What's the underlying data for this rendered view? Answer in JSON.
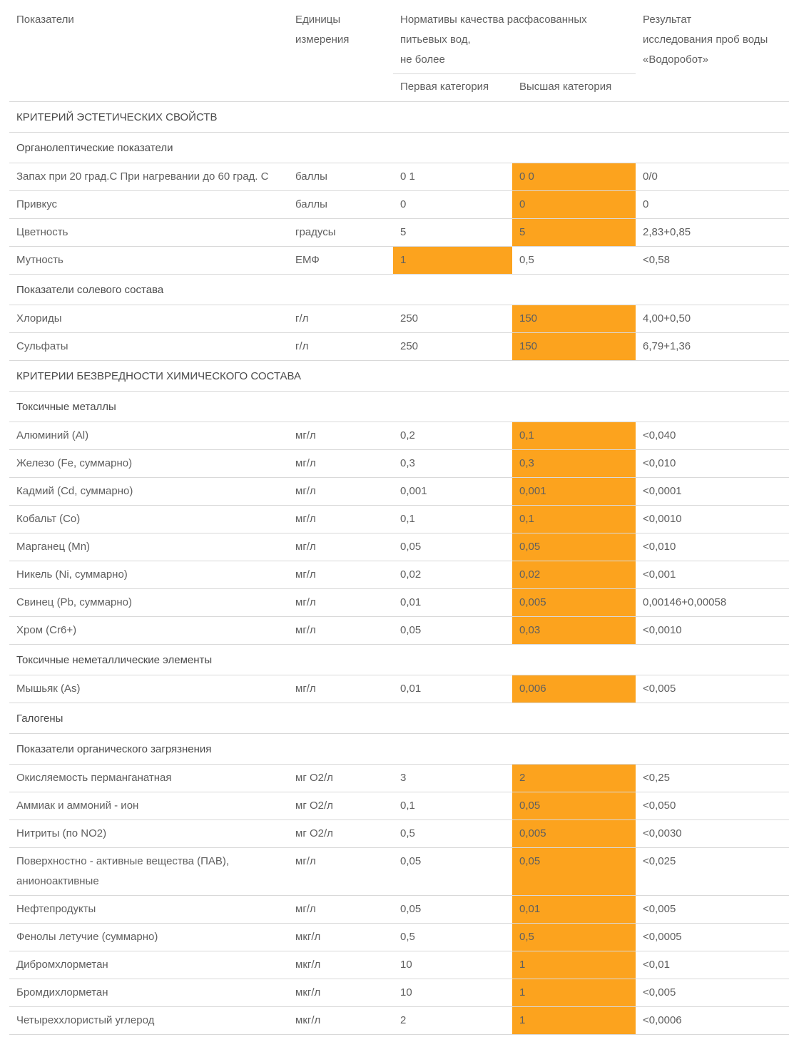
{
  "header": {
    "col_name": "Показатели",
    "col_unit_1": "Единицы",
    "col_unit_2": "измерения",
    "col_norm_1": "Нормативы качества расфасованных",
    "col_norm_2": "питьевых вод,",
    "col_norm_3": "не более",
    "col_res_1": "Результат",
    "col_res_2": "исследования проб воды",
    "col_res_3": "«Водоробот»",
    "sub_first": "Первая категория",
    "sub_high": "Высшая категория"
  },
  "rows": [
    {
      "type": "section",
      "text": "КРИТЕРИЙ ЭСТЕТИЧЕСКИХ СВОЙСТВ"
    },
    {
      "type": "subsection",
      "text": "Органолептические показатели"
    },
    {
      "type": "data",
      "name": "Запах при 20 град.С При нагревании до 60 град. С",
      "unit": "баллы",
      "first": "0 1",
      "high": "0 0",
      "result": "0/0",
      "hl": "high"
    },
    {
      "type": "data",
      "name": "Привкус",
      "unit": "баллы",
      "first": "0",
      "high": "0",
      "result": "0",
      "hl": "high"
    },
    {
      "type": "data",
      "name": "Цветность",
      "unit": "градусы",
      "first": "5",
      "high": "5",
      "result": "2,83+0,85",
      "hl": "high"
    },
    {
      "type": "data",
      "name": "Мутность",
      "unit": "ЕМФ",
      "first": "1",
      "high": "0,5",
      "result": "<0,58",
      "hl": "first"
    },
    {
      "type": "subsection",
      "text": "Показатели солевого состава"
    },
    {
      "type": "data",
      "name": "Хлориды",
      "unit": "г/л",
      "first": "250",
      "high": "150",
      "result": "4,00+0,50",
      "hl": "high"
    },
    {
      "type": "data",
      "name": "Сульфаты",
      "unit": "г/л",
      "first": "250",
      "high": "150",
      "result": "6,79+1,36",
      "hl": "high"
    },
    {
      "type": "section",
      "text": "КРИТЕРИИ БЕЗВРЕДНОСТИ ХИМИЧЕСКОГО СОСТАВА"
    },
    {
      "type": "subsection",
      "text": "Токсичные металлы"
    },
    {
      "type": "data",
      "name": "Алюминий (Al)",
      "unit": "мг/л",
      "first": "0,2",
      "high": "0,1",
      "result": "<0,040",
      "hl": "high"
    },
    {
      "type": "data",
      "name": "Железо (Fe, суммарно)",
      "unit": "мг/л",
      "first": "0,3",
      "high": "0,3",
      "result": "<0,010",
      "hl": "high"
    },
    {
      "type": "data",
      "name": "Кадмий (Cd, суммарно)",
      "unit": "мг/л",
      "first": "0,001",
      "high": "0,001",
      "result": "<0,0001",
      "hl": "high"
    },
    {
      "type": "data",
      "name": "Кобальт (Co)",
      "unit": "мг/л",
      "first": "0,1",
      "high": "0,1",
      "result": "<0,0010",
      "hl": "high"
    },
    {
      "type": "data",
      "name": "Марганец (Mn)",
      "unit": "мг/л",
      "first": "0,05",
      "high": "0,05",
      "result": "<0,010",
      "hl": "high"
    },
    {
      "type": "data",
      "name": "Никель (Ni, суммарно)",
      "unit": "мг/л",
      "first": "0,02",
      "high": "0,02",
      "result": "<0,001",
      "hl": "high"
    },
    {
      "type": "data",
      "name": "Свинец (Pb, суммарно)",
      "unit": "мг/л",
      "first": "0,01",
      "high": "0,005",
      "result": "0,00146+0,00058",
      "hl": "high"
    },
    {
      "type": "data",
      "name": "Хром (Cr6+)",
      "unit": "мг/л",
      "first": "0,05",
      "high": "0,03",
      "result": "<0,0010",
      "hl": "high"
    },
    {
      "type": "subsection",
      "text": "Токсичные неметаллические элементы"
    },
    {
      "type": "data",
      "name": "Мышьяк (As)",
      "unit": "мг/л",
      "first": "0,01",
      "high": "0,006",
      "result": "<0,005",
      "hl": "high"
    },
    {
      "type": "subsection",
      "text": "Галогены"
    },
    {
      "type": "subsection",
      "text": "Показатели органического загрязнения"
    },
    {
      "type": "data",
      "name": "Окисляемость перманганатная",
      "unit": "мг О2/л",
      "first": "3",
      "high": "2",
      "result": "<0,25",
      "hl": "high"
    },
    {
      "type": "data",
      "name": "Аммиак и аммоний - ион",
      "unit": "мг О2/л",
      "first": "0,1",
      "high": "0,05",
      "result": "<0,050",
      "hl": "high"
    },
    {
      "type": "data",
      "name": "Нитриты (по NO2)",
      "unit": "мг О2/л",
      "first": "0,5",
      "high": "0,005",
      "result": "<0,0030",
      "hl": "high"
    },
    {
      "type": "data",
      "name": "Поверхностно - активные вещества (ПАВ), анионоактивные",
      "unit": "мг/л",
      "first": "0,05",
      "high": "0,05",
      "result": "<0,025",
      "hl": "high"
    },
    {
      "type": "data",
      "name": "Нефтепродукты",
      "unit": "мг/л",
      "first": "0,05",
      "high": "0,01",
      "result": "<0,005",
      "hl": "high"
    },
    {
      "type": "data",
      "name": "Фенолы летучие (суммарно)",
      "unit": "мкг/л",
      "first": "0,5",
      "high": "0,5",
      "result": "<0,0005",
      "hl": "high"
    },
    {
      "type": "data",
      "name": "Дибромхлорметан",
      "unit": "мкг/л",
      "first": "10",
      "high": "1",
      "result": "<0,01",
      "hl": "high"
    },
    {
      "type": "data",
      "name": "Бромдихлорметан",
      "unit": "мкг/л",
      "first": "10",
      "high": "1",
      "result": "<0,005",
      "hl": "high"
    },
    {
      "type": "data",
      "name": "Четыреххлористый углерод",
      "unit": "мкг/л",
      "first": "2",
      "high": "1",
      "result": "<0,0006",
      "hl": "high"
    }
  ]
}
